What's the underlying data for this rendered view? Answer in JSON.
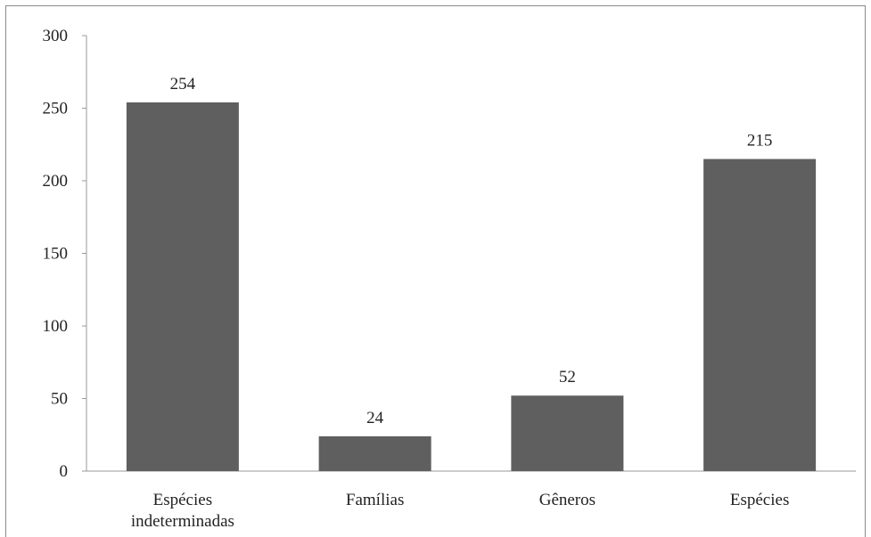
{
  "chart_data": {
    "type": "bar",
    "title": "",
    "xlabel": "",
    "ylabel": "",
    "categories": [
      [
        "Espécies",
        "indeterminadas"
      ],
      [
        "Famílias"
      ],
      [
        "Gêneros"
      ],
      [
        "Espécies"
      ]
    ],
    "values": [
      254,
      24,
      52,
      215
    ],
    "data_labels": [
      "254",
      "24",
      "52",
      "215"
    ],
    "ylim": [
      0,
      300
    ],
    "yticks": [
      0,
      50,
      100,
      150,
      200,
      250,
      300
    ],
    "ytick_labels": [
      "0",
      "50",
      "100",
      "150",
      "200",
      "250",
      "300"
    ],
    "grid": false,
    "legend": "none",
    "colors": {
      "bar": "#5f5f5f",
      "axis": "#9a9a9a",
      "text": "#222222"
    }
  }
}
